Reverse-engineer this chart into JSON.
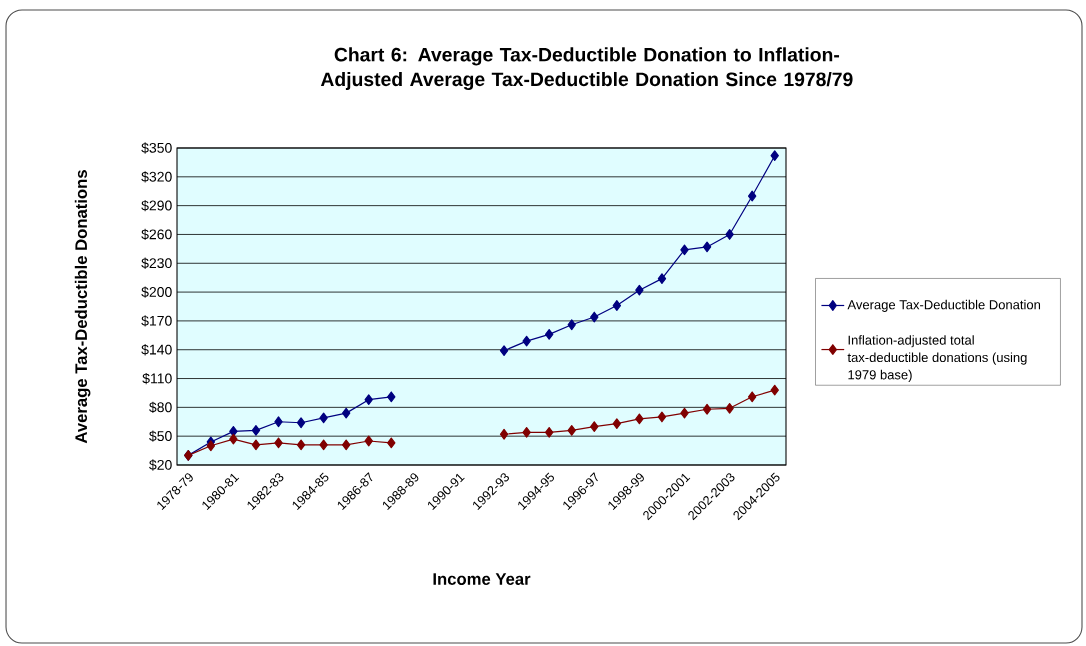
{
  "chart_data": {
    "type": "line",
    "title": "Chart 6: Average Tax-Deductible Donation to Inflation-Adjusted Average Tax-Deductible Donation Since 1978/79",
    "xlabel": "Income Year",
    "ylabel": "Average Tax-Deductible Donations",
    "categories": [
      "1978-79",
      null,
      "1980-81",
      null,
      "1982-83",
      null,
      "1984-85",
      null,
      "1986-87",
      null,
      "1988-89",
      null,
      "1990-91",
      null,
      "1992-93",
      null,
      "1994-95",
      null,
      "1996-97",
      null,
      "1998-99",
      null,
      "2000-2001",
      null,
      "2002-2003",
      null,
      "2004-2005"
    ],
    "series": [
      {
        "name": "Average Tax-Deductible Donation",
        "color": "#000080",
        "values": [
          30,
          44,
          55,
          56,
          65,
          64,
          69,
          74,
          88,
          91,
          null,
          null,
          null,
          null,
          139,
          149,
          156,
          166,
          174,
          186,
          202,
          214,
          244,
          247,
          260,
          300,
          342
        ]
      },
      {
        "name": "Inflation-adjusted total tax-deductible donations (using 1979 base)",
        "color": "#800000",
        "values": [
          30,
          40,
          47,
          41,
          43,
          41,
          41,
          41,
          45,
          43,
          null,
          null,
          null,
          null,
          52,
          54,
          54,
          56,
          60,
          63,
          68,
          70,
          74,
          78,
          79,
          91,
          98
        ]
      }
    ],
    "ylim": [
      20,
      350
    ],
    "yticks": [
      {
        "value": 20,
        "label": "$20"
      },
      {
        "value": 50,
        "label": "$50"
      },
      {
        "value": 80,
        "label": "$80"
      },
      {
        "value": 110,
        "label": "$110"
      },
      {
        "value": 140,
        "label": "$140"
      },
      {
        "value": 170,
        "label": "$170"
      },
      {
        "value": 200,
        "label": "$200"
      },
      {
        "value": 230,
        "label": "$230"
      },
      {
        "value": 260,
        "label": "$260"
      },
      {
        "value": 290,
        "label": "$290"
      },
      {
        "value": 320,
        "label": "$320"
      },
      {
        "value": 350,
        "label": "$350"
      }
    ],
    "grid": "y",
    "legend": "right",
    "marker": "diamond",
    "line_style": "solid"
  }
}
